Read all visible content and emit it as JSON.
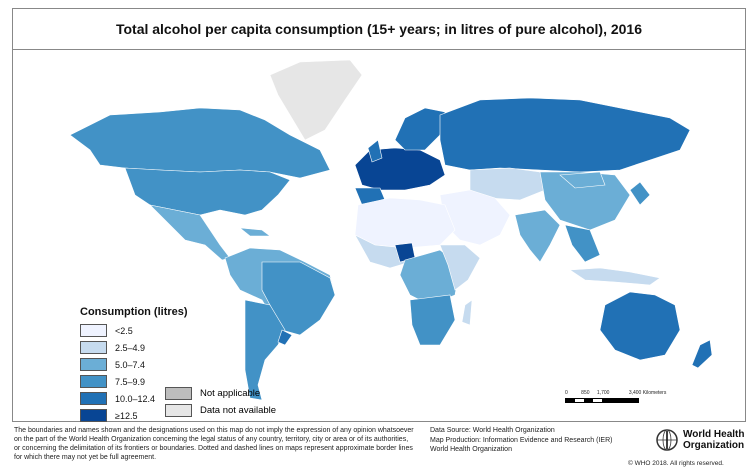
{
  "title": "Total alcohol per capita consumption (15+ years; in litres of pure alcohol), 2016",
  "legend": {
    "title": "Consumption (litres)",
    "classes": [
      {
        "label": "<2.5",
        "color": "#eff3ff"
      },
      {
        "label": "2.5–4.9",
        "color": "#c6dbef"
      },
      {
        "label": "5.0–7.4",
        "color": "#6baed6"
      },
      {
        "label": "7.5–9.9",
        "color": "#4292c6"
      },
      {
        "label": "10.0–12.4",
        "color": "#2171b5"
      },
      {
        "label": "≥12.5",
        "color": "#084594"
      }
    ],
    "not_applicable": {
      "label": "Not applicable",
      "color": "#bdbdbd"
    },
    "no_data": {
      "label": "Data not available",
      "color": "#e6e6e6"
    }
  },
  "scale_bar": {
    "ticks": [
      "0",
      "850",
      "1,700",
      "3,400 Kilometers"
    ]
  },
  "disclaimer": "The boundaries and names shown and the designations used on this map do not imply the expression of any opinion whatsoever on the part of the World Health Organization concerning the legal status of any country, territory, city or area or of its authorities, or concerning the delimitation of its frontiers or boundaries. Dotted and dashed lines on maps represent approximate border lines for which there may not yet be full agreement.",
  "source": {
    "data_source": "Data Source: World Health Organization",
    "map_production": "Map Production: Information Evidence and Research (IER)",
    "org": "World Health Organization"
  },
  "logo": {
    "line1": "World Health",
    "line2": "Organization",
    "icon": "who-emblem-icon"
  },
  "copyright": "© WHO 2018. All rights reserved."
}
